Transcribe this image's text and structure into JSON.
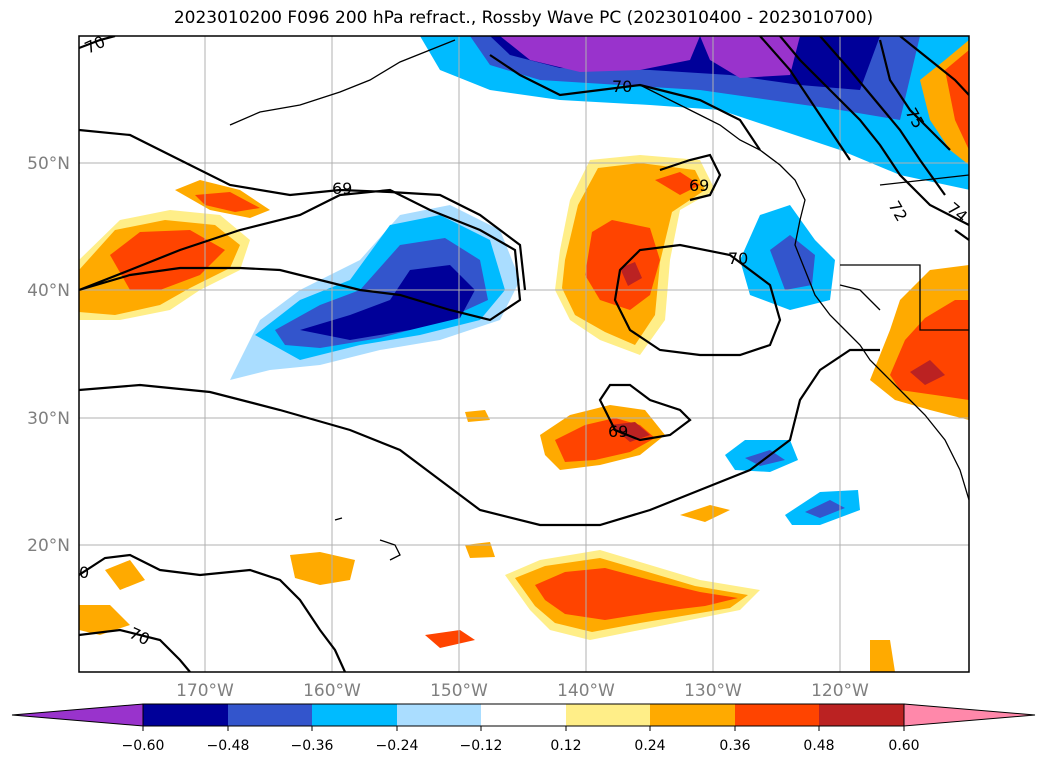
{
  "title": "2023010200 F096 200 hPa refract., Rossby Wave PC (2023010400 - 2023010700)",
  "map": {
    "lon_min": -180,
    "lon_max": -110,
    "lat_min": 10,
    "lat_max": 60,
    "lat_labels": [
      "50°N",
      "40°N",
      "30°N",
      "20°N"
    ],
    "lon_labels": [
      "170°W",
      "160°W",
      "150°W",
      "140°W",
      "130°W",
      "120°W"
    ],
    "contour_labels": [
      "70",
      "70",
      "69",
      "69",
      "70",
      "69",
      "75",
      "74",
      "72",
      "70",
      "0"
    ]
  },
  "colorbar": {
    "ticks": [
      "−0.60",
      "−0.48",
      "−0.36",
      "−0.24",
      "−0.12",
      "0.12",
      "0.24",
      "0.36",
      "0.48",
      "0.60"
    ],
    "colors": [
      "#9933cc",
      "#000099",
      "#3355cc",
      "#00bbff",
      "#aaddff",
      "#ffffff",
      "#ffee88",
      "#ffaa00",
      "#ff4400",
      "#bb2222",
      "#ff88aa"
    ]
  }
}
